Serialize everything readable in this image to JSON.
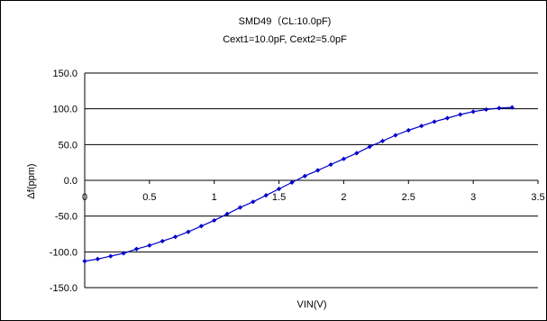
{
  "chart_data": {
    "type": "line",
    "title": "SMD49（CL:10.0pF)",
    "subtitle": "Cext1=10.0pF,  Cext2=5.0pF",
    "xlabel": "VIN(V)",
    "ylabel": "Δf(ppm)",
    "xlim": [
      0,
      3.5
    ],
    "ylim": [
      -150,
      150
    ],
    "x_ticks": [
      "0",
      "0.5",
      "1",
      "1.5",
      "2",
      "2.5",
      "3",
      "3.5"
    ],
    "y_ticks": [
      "150.0",
      "100.0",
      "50.0",
      "0.0",
      "-50.0",
      "-100.0",
      "-150.0"
    ],
    "grid": true,
    "series": [
      {
        "color": "#0000cc",
        "x": [
          0,
          0.1,
          0.2,
          0.3,
          0.4,
          0.5,
          0.6,
          0.7,
          0.8,
          0.9,
          1.0,
          1.1,
          1.2,
          1.3,
          1.4,
          1.5,
          1.6,
          1.7,
          1.8,
          1.9,
          2.0,
          2.1,
          2.2,
          2.3,
          2.4,
          2.5,
          2.6,
          2.7,
          2.8,
          2.9,
          3.0,
          3.1,
          3.2,
          3.3
        ],
        "y": [
          -113,
          -110,
          -106,
          -102,
          -96,
          -91,
          -85,
          -79,
          -72,
          -64,
          -56,
          -47,
          -38,
          -30,
          -21,
          -12,
          -3,
          6,
          14,
          22,
          30,
          38,
          47,
          55,
          63,
          70,
          76,
          82,
          87,
          92,
          96,
          99,
          101,
          102
        ]
      }
    ]
  }
}
